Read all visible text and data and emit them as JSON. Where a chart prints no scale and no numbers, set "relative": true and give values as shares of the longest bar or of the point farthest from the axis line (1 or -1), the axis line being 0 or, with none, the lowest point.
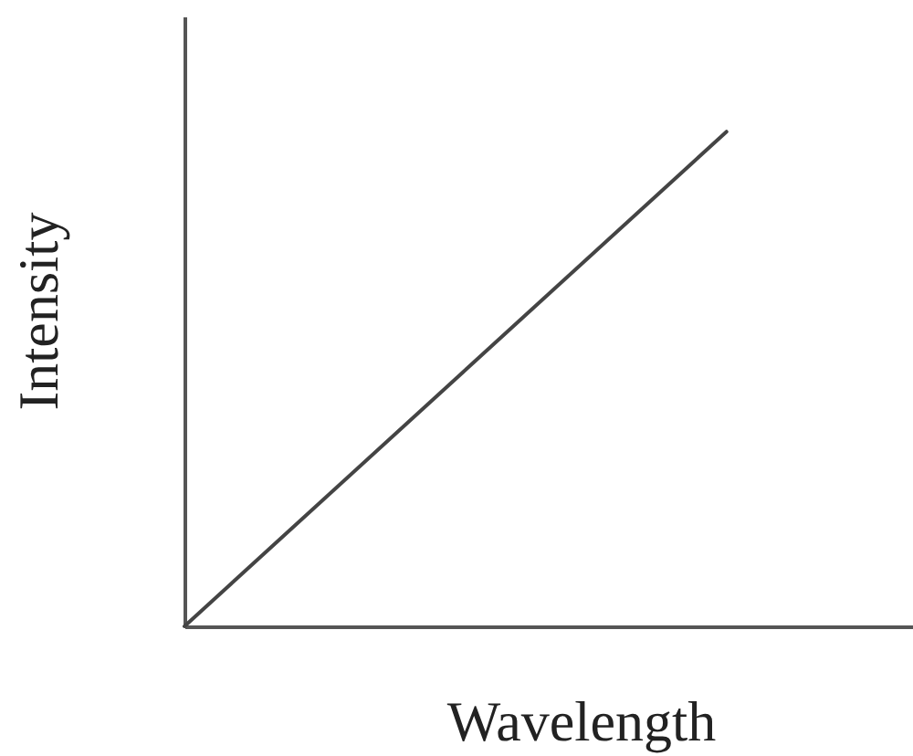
{
  "chart_data": {
    "type": "line",
    "xlabel": "Wavelength",
    "ylabel": "Intensity",
    "categories": [
      null,
      null
    ],
    "values": [
      0,
      1
    ],
    "color": "#444444",
    "relative": true,
    "tick_labels": false
  }
}
